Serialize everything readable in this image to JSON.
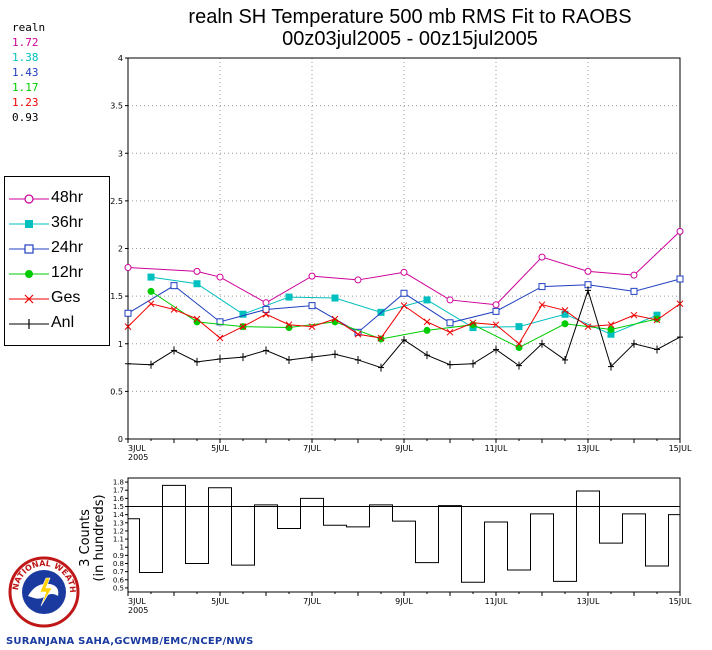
{
  "title": {
    "line1": "realn SH Temperature 500 mb RMS Fit to RAOBS",
    "line2": "00z03jul2005 - 00z15jul2005"
  },
  "stats": {
    "label": "realn",
    "items": [
      {
        "value": "1.72",
        "color": "#cc0099"
      },
      {
        "value": "1.38",
        "color": "#00bfbf"
      },
      {
        "value": "1.43",
        "color": "#1f3fbf"
      },
      {
        "value": "1.17",
        "color": "#00cc00"
      },
      {
        "value": "1.23",
        "color": "#ee0000"
      },
      {
        "value": "0.93",
        "color": "#000000"
      }
    ]
  },
  "credit": "SURANJANA SAHA,GCWMB/EMC/NCEP/NWS",
  "logo_text": "NATIONAL WEATHER SERVICE",
  "chart_data": [
    {
      "type": "line",
      "ylim": [
        0,
        4
      ],
      "yticks": [
        "0",
        "0.5",
        "1",
        "1.5",
        "2",
        "2.5",
        "3",
        "3.5",
        "4"
      ],
      "xticks": [
        {
          "label": "3JUL",
          "sub": "2005",
          "x": 3
        },
        {
          "label": "5JUL",
          "x": 5
        },
        {
          "label": "7JUL",
          "x": 7
        },
        {
          "label": "9JUL",
          "x": 9
        },
        {
          "label": "11JUL",
          "x": 11
        },
        {
          "label": "13JUL",
          "x": 13
        },
        {
          "label": "15JUL",
          "x": 15
        }
      ],
      "xlim": [
        3,
        15
      ],
      "grid": true,
      "legend_position": "left",
      "series": [
        {
          "name": "48hr",
          "color": "#cc0099",
          "marker": "circle-open",
          "x": [
            3,
            3.5,
            4.5,
            5,
            6,
            7,
            8,
            9,
            10,
            11,
            12,
            13,
            14,
            15
          ],
          "values": [
            1.8,
            null,
            1.76,
            1.7,
            1.43,
            1.71,
            1.67,
            1.75,
            1.46,
            1.41,
            1.91,
            1.76,
            1.72,
            2.18
          ]
        },
        {
          "name": "36hr",
          "color": "#00bfbf",
          "marker": "square-filled",
          "x": [
            3.5,
            4.5,
            5.5,
            6.5,
            7.5,
            8.5,
            9.5,
            10.5,
            11.5,
            12.5,
            13.5,
            14.5
          ],
          "values": [
            1.7,
            1.63,
            1.31,
            1.49,
            1.48,
            1.33,
            1.46,
            1.17,
            1.18,
            1.31,
            1.1,
            1.3
          ]
        },
        {
          "name": "24hr",
          "color": "#1f3fbf",
          "marker": "square-open",
          "x": [
            3,
            4,
            5,
            6,
            7,
            8,
            9,
            10,
            11,
            12,
            13,
            14,
            15
          ],
          "values": [
            1.32,
            1.61,
            1.23,
            1.36,
            1.4,
            1.12,
            1.53,
            1.22,
            1.34,
            1.6,
            1.62,
            1.55,
            1.68
          ]
        },
        {
          "name": "12hr",
          "color": "#00cc00",
          "marker": "circle-filled",
          "x": [
            3.5,
            4.5,
            5.5,
            6.5,
            7.5,
            8.5,
            9.5,
            10.5,
            11.5,
            12.5,
            13.5,
            14.5
          ],
          "values": [
            1.55,
            1.23,
            1.18,
            1.17,
            1.23,
            1.05,
            1.14,
            1.2,
            0.96,
            1.21,
            1.15,
            1.26
          ]
        },
        {
          "name": "Ges",
          "color": "#ee0000",
          "marker": "x",
          "x": [
            3,
            3.5,
            4,
            4.5,
            5,
            5.5,
            6,
            6.5,
            7,
            7.5,
            8,
            8.5,
            9,
            9.5,
            10,
            10.5,
            11,
            11.5,
            12,
            12.5,
            13,
            13.5,
            14,
            14.5,
            15
          ],
          "values": [
            1.18,
            1.42,
            1.36,
            1.26,
            1.06,
            1.18,
            1.31,
            1.2,
            1.18,
            1.26,
            1.1,
            1.06,
            1.4,
            1.23,
            1.12,
            1.22,
            1.2,
            1.0,
            1.41,
            1.35,
            1.18,
            1.2,
            1.3,
            1.25,
            1.42
          ]
        },
        {
          "name": "Anl",
          "color": "#000000",
          "marker": "plus",
          "x": [
            3,
            3.5,
            4,
            4.5,
            5,
            5.5,
            6,
            6.5,
            7,
            7.5,
            8,
            8.5,
            9,
            9.5,
            10,
            10.5,
            11,
            11.5,
            12,
            12.5,
            13,
            13.5,
            14,
            14.5,
            15
          ],
          "values": [
            0.79,
            0.78,
            0.93,
            0.81,
            0.84,
            0.86,
            0.93,
            0.83,
            0.86,
            0.89,
            0.83,
            0.75,
            1.04,
            0.88,
            0.78,
            0.79,
            0.94,
            0.77,
            1.0,
            0.83,
            1.56,
            0.76,
            1.0,
            0.94,
            1.07
          ]
        }
      ]
    },
    {
      "type": "bar",
      "ylabel": "Counts (in hundreds)",
      "ylabel_prefix": "3",
      "yticks": [
        "0.5",
        "0.6",
        "0.7",
        "0.8",
        "0.9",
        "1",
        "1.1",
        "1.2",
        "1.3",
        "1.4",
        "1.5",
        "1.6",
        "1.7",
        "1.8"
      ],
      "ylim": [
        0.45,
        1.85
      ],
      "reference_line": 1.5,
      "xlim": [
        3,
        15
      ],
      "xticks": [
        {
          "label": "3JUL",
          "sub": "2005",
          "x": 3
        },
        {
          "label": "5JUL",
          "x": 5
        },
        {
          "label": "7JUL",
          "x": 7
        },
        {
          "label": "9JUL",
          "x": 9
        },
        {
          "label": "11JUL",
          "x": 11
        },
        {
          "label": "13JUL",
          "x": 13
        },
        {
          "label": "15JUL",
          "x": 15
        }
      ],
      "x": [
        3,
        3.5,
        4,
        4.5,
        5,
        5.5,
        6,
        6.5,
        7,
        7.5,
        8,
        8.5,
        9,
        9.5,
        10,
        10.5,
        11,
        11.5,
        12,
        12.5,
        13,
        13.5,
        14,
        14.5,
        15
      ],
      "values": [
        1.35,
        0.69,
        1.76,
        0.8,
        1.73,
        0.78,
        1.52,
        1.23,
        1.6,
        1.27,
        1.25,
        1.52,
        1.32,
        0.81,
        1.51,
        0.57,
        1.31,
        0.72,
        1.41,
        0.58,
        1.69,
        1.05,
        1.41,
        0.77,
        1.4
      ]
    }
  ]
}
